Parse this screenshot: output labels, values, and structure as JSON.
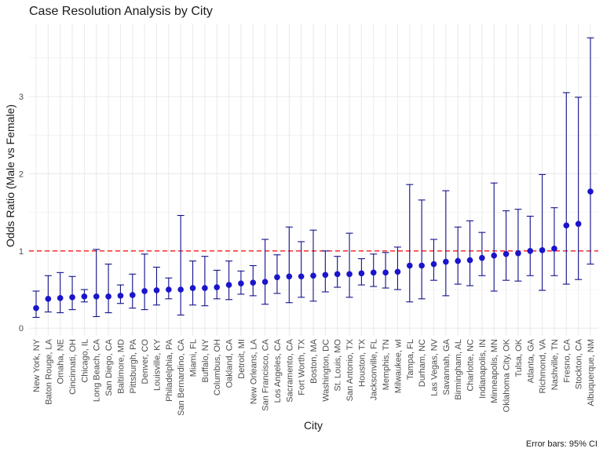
{
  "chart_data": {
    "type": "scatter",
    "title": "Case Resolution Analysis by City",
    "xlabel": "City",
    "ylabel": "Odds Ratio (Male vs Female)",
    "caption": "Error bars: 95% CI",
    "ylim": [
      0,
      3.8
    ],
    "yticks": [
      0,
      1,
      2,
      3
    ],
    "reference_line": 1,
    "grid": true,
    "colors": {
      "point": "#1a14cc",
      "errorbar": "#12128b",
      "refline": "#ff2a2a",
      "grid": "#ebebeb"
    },
    "categories": [
      "New York, NY",
      "Baton Rouge, LA",
      "Omaha, NE",
      "Cincinnati, OH",
      "Chicago, IL",
      "Long Beach, CA",
      "San Diego, CA",
      "Baltimore, MD",
      "Pittsburgh, PA",
      "Denver, CO",
      "Louisville, KY",
      "Philadelphia, PA",
      "San Bernardino, CA",
      "Miami, FL",
      "Buffalo, NY",
      "Columbus, OH",
      "Oakland, CA",
      "Detroit, MI",
      "New Orleans, LA",
      "San Francisco, CA",
      "Los Angeles, CA",
      "Sacramento, CA",
      "Fort Worth, TX",
      "Boston, MA",
      "Washington, DC",
      "St. Louis, MO",
      "San Antonio, TX",
      "Houston, TX",
      "Jacksonville, FL",
      "Memphis, TN",
      "Milwaukee, wI",
      "Tampa, FL",
      "Durham, NC",
      "Las Vegas, NV",
      "Savannah, GA",
      "Birmingham, AL",
      "Charlotte, NC",
      "Indianapolis, IN",
      "Minneapolis, MN",
      "Oklahoma City, OK",
      "Tulsa, OK",
      "Atlanta, GA",
      "Richmond, VA",
      "Nashville, TN",
      "Fresno, CA",
      "Stockton, CA",
      "Albuquerque, NM"
    ],
    "values": [
      0.26,
      0.38,
      0.39,
      0.4,
      0.41,
      0.41,
      0.41,
      0.42,
      0.43,
      0.48,
      0.49,
      0.5,
      0.5,
      0.52,
      0.52,
      0.53,
      0.56,
      0.58,
      0.59,
      0.6,
      0.66,
      0.67,
      0.67,
      0.68,
      0.69,
      0.7,
      0.7,
      0.71,
      0.72,
      0.72,
      0.73,
      0.81,
      0.81,
      0.83,
      0.86,
      0.87,
      0.88,
      0.91,
      0.94,
      0.96,
      0.97,
      1.0,
      1.01,
      1.03,
      1.33,
      1.35,
      1.77
    ],
    "lower": [
      0.14,
      0.21,
      0.2,
      0.24,
      0.34,
      0.15,
      0.2,
      0.32,
      0.26,
      0.24,
      0.3,
      0.38,
      0.17,
      0.3,
      0.29,
      0.38,
      0.37,
      0.44,
      0.42,
      0.31,
      0.45,
      0.33,
      0.4,
      0.35,
      0.47,
      0.53,
      0.4,
      0.56,
      0.54,
      0.52,
      0.5,
      0.34,
      0.38,
      0.62,
      0.42,
      0.57,
      0.55,
      0.68,
      0.48,
      0.62,
      0.61,
      0.68,
      0.49,
      0.68,
      0.57,
      0.63,
      0.83
    ],
    "upper": [
      0.48,
      0.68,
      0.72,
      0.67,
      0.5,
      1.02,
      0.83,
      0.56,
      0.7,
      0.96,
      0.79,
      0.65,
      1.46,
      0.87,
      0.93,
      0.75,
      0.87,
      0.74,
      0.81,
      1.15,
      0.95,
      1.31,
      1.12,
      1.27,
      1.0,
      0.93,
      1.23,
      0.9,
      0.96,
      0.98,
      1.05,
      1.86,
      1.66,
      1.15,
      1.78,
      1.31,
      1.39,
      1.24,
      1.88,
      1.52,
      1.54,
      1.45,
      1.99,
      1.56,
      3.05,
      2.99,
      3.76
    ]
  }
}
